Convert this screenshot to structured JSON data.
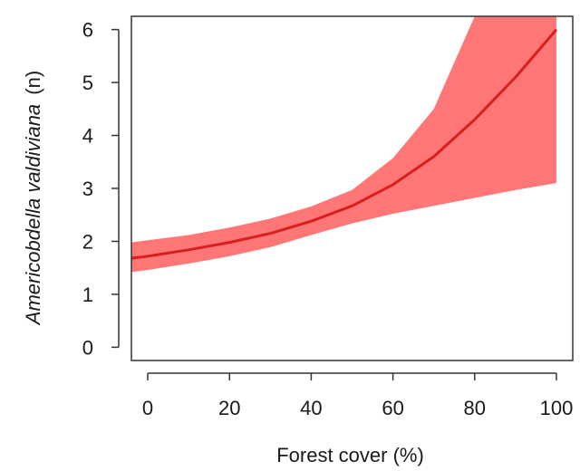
{
  "chart_data": {
    "type": "line",
    "title": "",
    "xlabel": "Forest cover (%)",
    "ylabel_species": "Americobdella valdiviana",
    "ylabel_unit": "(n)",
    "xlim": [
      -4,
      104
    ],
    "ylim": [
      -0.25,
      6.25
    ],
    "xticks": [
      0,
      20,
      40,
      60,
      80,
      100
    ],
    "yticks": [
      0,
      1,
      2,
      3,
      4,
      5,
      6
    ],
    "grid": false,
    "legend": "none",
    "colors": {
      "line": "#d91e1e",
      "band": "#ff7676",
      "axis": "#333333"
    },
    "series": [
      {
        "x": [
          -4,
          0,
          10,
          20,
          30,
          40,
          50,
          60,
          70,
          80,
          90,
          100
        ],
        "y": [
          1.68,
          1.72,
          1.84,
          1.98,
          2.15,
          2.38,
          2.67,
          3.07,
          3.6,
          4.3,
          5.1,
          6.0
        ],
        "lower": [
          1.42,
          1.46,
          1.58,
          1.72,
          1.89,
          2.12,
          2.34,
          2.52,
          2.67,
          2.82,
          2.97,
          3.1
        ],
        "upper": [
          1.98,
          2.02,
          2.12,
          2.26,
          2.43,
          2.66,
          2.97,
          3.57,
          4.5,
          6.25,
          6.25,
          6.25
        ]
      }
    ]
  }
}
